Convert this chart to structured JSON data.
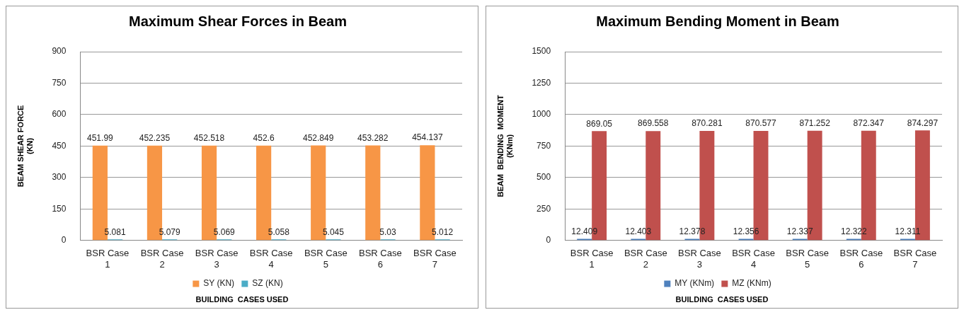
{
  "chart_data": [
    {
      "type": "bar",
      "title": "Maximum Shear Forces in Beam",
      "xlabel": "BUILDING  CASES USED",
      "ylabel": "BEAM SHEAR FORCE (KN)",
      "categories": [
        "BSR Case 1",
        "BSR Case 2",
        "BSR Case 3",
        "BSR Case 4",
        "BSR Case 5",
        "BSR Case 6",
        "BSR Case 7"
      ],
      "series": [
        {
          "name": "SY (KN)",
          "color": "#f79646",
          "values": [
            451.99,
            452.235,
            452.518,
            452.6,
            452.849,
            453.282,
            454.137
          ]
        },
        {
          "name": "SZ (KN)",
          "color": "#4bacc6",
          "values": [
            5.081,
            5.079,
            5.069,
            5.058,
            5.045,
            5.03,
            5.012
          ]
        }
      ],
      "ylim": [
        0,
        900
      ],
      "yticks": [
        0,
        150,
        300,
        450,
        600,
        750,
        900
      ],
      "grid": "y",
      "legend": "bottom",
      "data_labels": true
    },
    {
      "type": "bar",
      "title": "Maximum Bending Moment in Beam",
      "xlabel": "BUILDING  CASES USED",
      "ylabel": "BEAM  BENDING  MOMENT (KNm)",
      "categories": [
        "BSR Case 1",
        "BSR Case 2",
        "BSR Case 3",
        "BSR Case 4",
        "BSR Case 5",
        "BSR Case 6",
        "BSR Case 7"
      ],
      "series": [
        {
          "name": "MY (KNm)",
          "color": "#4f81bd",
          "values": [
            12.409,
            12.403,
            12.378,
            12.356,
            12.337,
            12.322,
            12.311
          ]
        },
        {
          "name": "MZ (KNm)",
          "color": "#c0504d",
          "values": [
            869.05,
            869.558,
            870.281,
            870.577,
            871.252,
            872.347,
            874.297
          ]
        }
      ],
      "ylim": [
        0,
        1500
      ],
      "yticks": [
        0,
        250,
        500,
        750,
        1000,
        1250,
        1500
      ],
      "grid": "y",
      "legend": "bottom",
      "data_labels": true
    }
  ]
}
